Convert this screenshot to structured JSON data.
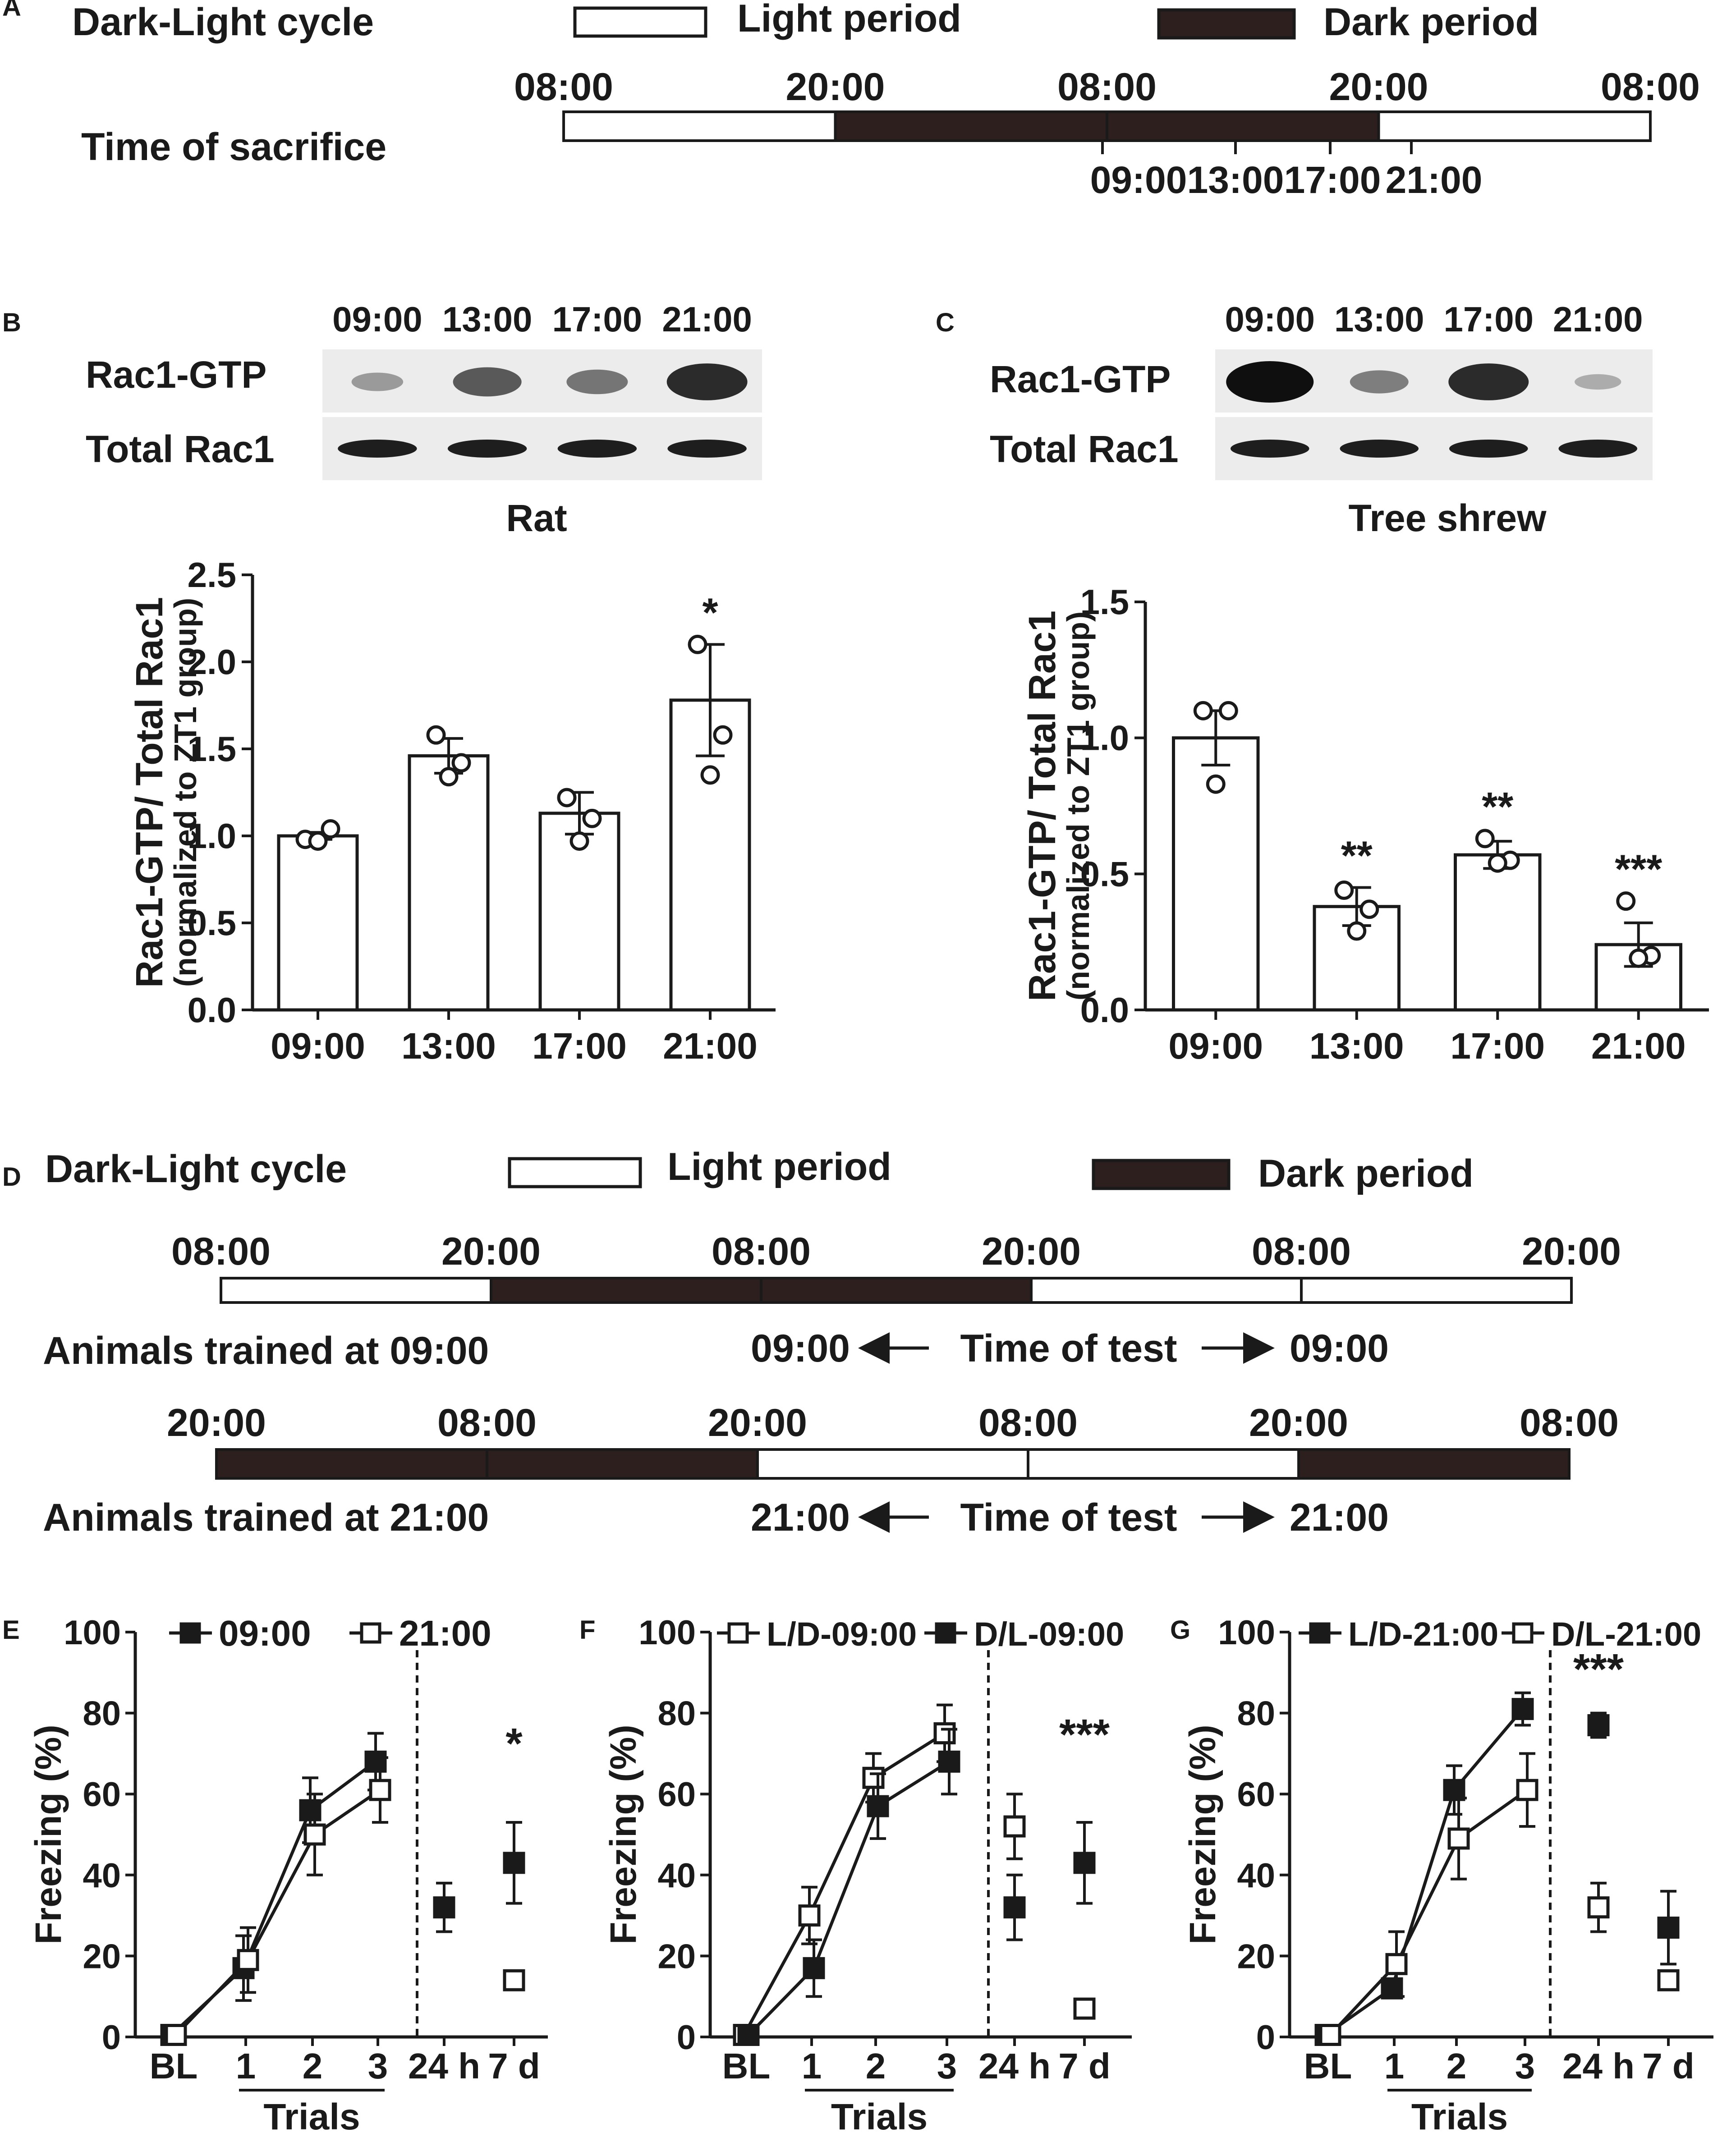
{
  "colors": {
    "ink": "#1a1a1a",
    "dark_period": "#2e1f1f",
    "light_period": "#ffffff",
    "band": "#1e1e1e"
  },
  "panel_a": {
    "letter": "A",
    "cycle_label": "Dark-Light cycle",
    "legend_light": "Light period",
    "legend_dark": "Dark period",
    "bar_times": [
      "08:00",
      "20:00",
      "08:00",
      "20:00",
      "08:00"
    ],
    "sacrifice_label": "Time of sacrifice",
    "sacrifice_times": [
      "09:00",
      "13:00",
      "17:00",
      "21:00"
    ],
    "periods": [
      "light",
      "dark",
      "dark",
      "light"
    ]
  },
  "panel_b": {
    "letter": "B",
    "blot_times": [
      "09:00",
      "13:00",
      "17:00",
      "21:00"
    ],
    "row1": "Rac1-GTP",
    "row2": "Total Rac1",
    "species": "Rat",
    "gtp_intensity": [
      0.25,
      0.6,
      0.45,
      0.85
    ]
  },
  "panel_c": {
    "letter": "C",
    "blot_times": [
      "09:00",
      "13:00",
      "17:00",
      "21:00"
    ],
    "row1": "Rac1-GTP",
    "row2": "Total Rac1",
    "species": "Tree shrew",
    "gtp_intensity": [
      1.0,
      0.4,
      0.85,
      0.15
    ]
  },
  "panel_d": {
    "letter": "D",
    "cycle_label": "Dark-Light cycle",
    "legend_light": "Light period",
    "legend_dark": "Dark period",
    "row1_times": [
      "08:00",
      "20:00",
      "08:00",
      "20:00",
      "08:00",
      "20:00"
    ],
    "row1_periods": [
      "light",
      "dark",
      "dark",
      "light",
      "light"
    ],
    "row1_label": "Animals trained at 09:00",
    "row1_test_start": "09:00",
    "row1_test_end": "09:00",
    "row2_times": [
      "20:00",
      "08:00",
      "20:00",
      "08:00",
      "20:00",
      "08:00"
    ],
    "row2_periods": [
      "dark",
      "dark",
      "light",
      "light",
      "dark"
    ],
    "row2_label": "Animals trained at 21:00",
    "row2_test_start": "21:00",
    "row2_test_end": "21:00",
    "test_label": "Time of test"
  },
  "panel_e": {
    "letter": "E"
  },
  "panel_f": {
    "letter": "F"
  },
  "panel_g": {
    "letter": "G"
  },
  "chart_data": [
    {
      "id": "B",
      "type": "bar",
      "categories": [
        "09:00",
        "13:00",
        "17:00",
        "21:00"
      ],
      "values": [
        1.0,
        1.46,
        1.13,
        1.78
      ],
      "sem": [
        0.02,
        0.1,
        0.12,
        0.32
      ],
      "points": [
        [
          0.98,
          1.04,
          0.97
        ],
        [
          1.58,
          1.42,
          1.34
        ],
        [
          1.22,
          1.1,
          0.97
        ],
        [
          2.1,
          1.58,
          1.35
        ]
      ],
      "annotations": [
        "",
        "",
        "",
        "*"
      ],
      "ylabel": "Rac1-GTP/ Total Rac1",
      "ylabel2": "(normalized to ZT1 group)",
      "ylim": [
        0,
        2.5
      ],
      "yticks": [
        "0.0",
        "0.5",
        "1.0",
        "1.5",
        "2.0",
        "2.5"
      ]
    },
    {
      "id": "C",
      "type": "bar",
      "categories": [
        "09:00",
        "13:00",
        "17:00",
        "21:00"
      ],
      "values": [
        1.0,
        0.38,
        0.57,
        0.24
      ],
      "sem": [
        0.1,
        0.07,
        0.05,
        0.08
      ],
      "points": [
        [
          1.1,
          1.1,
          0.83
        ],
        [
          0.44,
          0.37,
          0.29
        ],
        [
          0.63,
          0.55,
          0.54
        ],
        [
          0.4,
          0.2,
          0.19
        ]
      ],
      "annotations": [
        "",
        "**",
        "**",
        "***"
      ],
      "ylabel": "Rac1-GTP/ Total Rac1",
      "ylabel2": "(normalized to ZT1 group)",
      "ylim": [
        0,
        1.5
      ],
      "yticks": [
        "0.0",
        "0.5",
        "1.0",
        "1.5"
      ]
    },
    {
      "id": "E",
      "type": "line",
      "ylabel": "Freezing (%)",
      "ylim": [
        0,
        100
      ],
      "yticks": [
        "0",
        "20",
        "40",
        "60",
        "80",
        "100"
      ],
      "xticks": [
        "BL",
        "1",
        "2",
        "3",
        "24 h",
        "7 d"
      ],
      "xlabel": "Trials",
      "series": [
        {
          "name": "09:00",
          "marker": "filled",
          "trials": [
            0.5,
            17,
            56,
            68
          ],
          "trials_err": [
            0.5,
            8,
            8,
            7
          ],
          "retention": [
            32,
            43
          ],
          "retention_err": [
            6,
            10
          ]
        },
        {
          "name": "21:00",
          "marker": "open",
          "trials": [
            0.5,
            19,
            50,
            61
          ],
          "trials_err": [
            0.5,
            8,
            10,
            8
          ],
          "retention": [
            null,
            14
          ],
          "retention_err": [
            null,
            2
          ]
        }
      ],
      "annotation": "*",
      "annotation_at": "7 d"
    },
    {
      "id": "F",
      "type": "line",
      "ylabel": "Freezing (%)",
      "ylim": [
        0,
        100
      ],
      "yticks": [
        "0",
        "20",
        "40",
        "60",
        "80",
        "100"
      ],
      "xticks": [
        "BL",
        "1",
        "2",
        "3",
        "24 h",
        "7 d"
      ],
      "xlabel": "Trials",
      "series": [
        {
          "name": "L/D-09:00",
          "marker": "open",
          "trials": [
            0.5,
            30,
            64,
            75
          ],
          "trials_err": [
            0.5,
            7,
            6,
            7
          ],
          "retention": [
            52,
            7
          ],
          "retention_err": [
            8,
            1
          ]
        },
        {
          "name": "D/L-09:00",
          "marker": "filled",
          "trials": [
            0.5,
            17,
            57,
            68
          ],
          "trials_err": [
            0.5,
            7,
            8,
            8
          ],
          "retention": [
            32,
            43
          ],
          "retention_err": [
            8,
            10
          ]
        }
      ],
      "annotation": "***",
      "annotation_at": "7 d"
    },
    {
      "id": "G",
      "type": "line",
      "ylabel": "Freezing (%)",
      "ylim": [
        0,
        100
      ],
      "yticks": [
        "0",
        "20",
        "40",
        "60",
        "80",
        "100"
      ],
      "xticks": [
        "BL",
        "1",
        "2",
        "3",
        "24 h",
        "7 d"
      ],
      "xlabel": "Trials",
      "series": [
        {
          "name": "L/D-21:00",
          "marker": "filled",
          "trials": [
            0.5,
            12,
            61,
            81
          ],
          "trials_err": [
            0.5,
            2,
            6,
            4
          ],
          "retention": [
            77,
            27
          ],
          "retention_err": [
            3,
            9
          ]
        },
        {
          "name": "D/L-21:00",
          "marker": "open",
          "trials": [
            0.5,
            18,
            49,
            61
          ],
          "trials_err": [
            0.5,
            8,
            10,
            9
          ],
          "retention": [
            32,
            14
          ],
          "retention_err": [
            6,
            2
          ]
        }
      ],
      "annotation": "***",
      "annotation_at": "24 h"
    }
  ]
}
